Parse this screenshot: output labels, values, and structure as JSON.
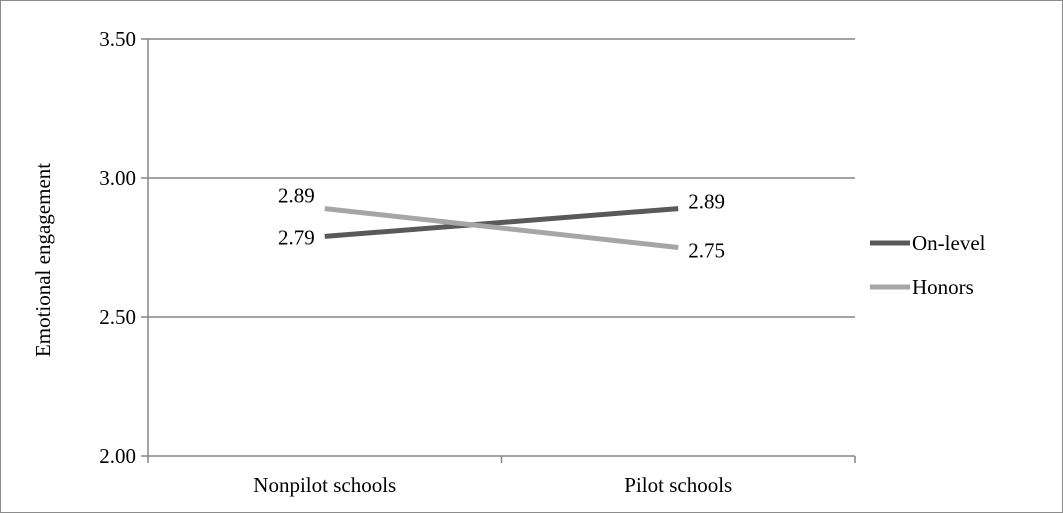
{
  "chart_data": {
    "type": "line",
    "title": "",
    "xlabel": "",
    "ylabel": "Emotional engagement",
    "categories": [
      "Nonpilot schools",
      "Pilot schools"
    ],
    "ylim": [
      2.0,
      3.5
    ],
    "yticks": [
      "2.00",
      "2.50",
      "3.00",
      "3.50"
    ],
    "grid": true,
    "legend_position": "right",
    "series": [
      {
        "name": "On-level",
        "values": [
          2.79,
          2.89
        ],
        "labels": [
          "2.79",
          "2.89"
        ],
        "color": "#595959"
      },
      {
        "name": "Honors",
        "values": [
          2.89,
          2.75
        ],
        "labels": [
          "2.89",
          "2.75"
        ],
        "color": "#a6a6a6"
      }
    ],
    "colors": {
      "gridline": "#868686",
      "axis": "#868686",
      "border": "#8c8c8c"
    }
  }
}
